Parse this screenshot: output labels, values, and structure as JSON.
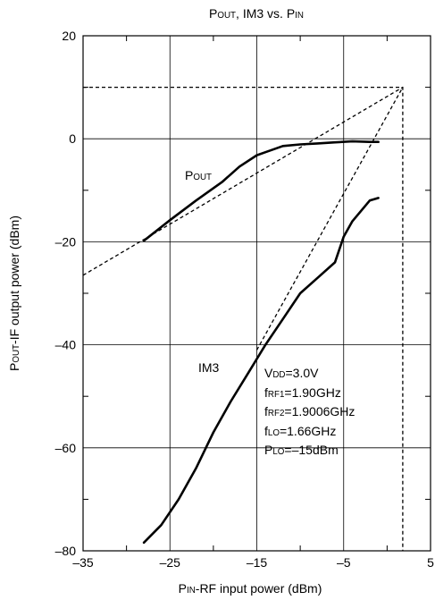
{
  "chart_data": {
    "type": "line",
    "title": {
      "main": "P",
      "sub": "OUT",
      "rest": ", IM3 vs. P",
      "sub2": "IN"
    },
    "xlabel": {
      "main": "P",
      "sub": "IN",
      "rest": "-RF input power (dBm)"
    },
    "ylabel": {
      "main": "P",
      "sub": "OUT",
      "rest": "-IF output power (dBm)"
    },
    "xlim": [
      -35,
      5
    ],
    "ylim": [
      -80,
      20
    ],
    "x_ticks": [
      -35,
      -25,
      -15,
      -5,
      5
    ],
    "x_tick_labels": [
      "–35",
      "–25",
      "–15",
      "–5",
      "5"
    ],
    "x_minor_ticks": [
      -30,
      -20,
      -10,
      0
    ],
    "y_ticks": [
      -80,
      -60,
      -40,
      -20,
      0,
      20
    ],
    "y_tick_labels": [
      "–80",
      "–60",
      "–40",
      "–20",
      "0",
      "20"
    ],
    "y_minor_ticks": [
      -70,
      -50,
      -30,
      -10,
      10
    ],
    "grid": true,
    "series": [
      {
        "name": {
          "main": "P",
          "sub": "OUT"
        },
        "x": [
          -28,
          -25,
          -22,
          -19,
          -17,
          -15,
          -14,
          -12,
          -10,
          -8,
          -6,
          -4,
          -2,
          -1
        ],
        "y": [
          -19.8,
          -15.8,
          -12,
          -8.4,
          -5.4,
          -3.2,
          -2.6,
          -1.4,
          -1.1,
          -0.9,
          -0.7,
          -0.5,
          -0.6,
          -0.6
        ]
      },
      {
        "name": {
          "main": "IM3",
          "sub": ""
        },
        "x": [
          -28,
          -26,
          -24,
          -22,
          -20,
          -18,
          -16,
          -14,
          -12,
          -10,
          -8,
          -6,
          -5,
          -4,
          -2,
          -1
        ],
        "y": [
          -78.4,
          -75,
          -70,
          -64,
          -57,
          -51,
          -45.5,
          -40,
          -35,
          -30,
          -27,
          -24,
          -19,
          -16,
          -12,
          -11.5
        ]
      }
    ],
    "extrapolations": [
      {
        "x": [
          -35,
          1.8
        ],
        "y": [
          -26.5,
          10
        ]
      },
      {
        "x": [
          -15,
          1.8
        ],
        "y": [
          -41,
          10
        ]
      },
      {
        "x": [
          -35,
          1.8,
          1.8
        ],
        "y": [
          10,
          10,
          -80
        ]
      }
    ],
    "conditions": [
      {
        "main": "V",
        "sub": "DD",
        "rest": "=3.0V"
      },
      {
        "main": "f",
        "sub": "RF1",
        "rest": "=1.90GHz"
      },
      {
        "main": "f",
        "sub": "RF2",
        "rest": "=1.9006GHz"
      },
      {
        "main": "f",
        "sub": "LO",
        "rest": "=1.66GHz"
      },
      {
        "main": "P",
        "sub": "LO",
        "rest": "=–15dBm"
      }
    ]
  }
}
